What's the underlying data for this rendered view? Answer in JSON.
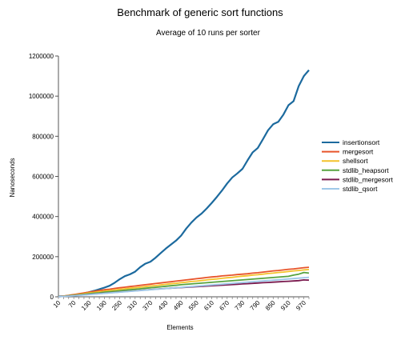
{
  "chart_data": {
    "type": "line",
    "title": "Benchmark of generic sort functions",
    "subtitle": "Average of 10 runs per sorter",
    "xlabel": "Elements",
    "ylabel": "Nanoseconds",
    "ylim": [
      0,
      1200000
    ],
    "yticks": [
      0,
      200000,
      400000,
      600000,
      800000,
      1000000,
      1200000
    ],
    "ytick_labels": [
      "0",
      "200000",
      "400000",
      "600000",
      "800000",
      "1000000",
      "1200000"
    ],
    "xticks": [
      "10",
      "70",
      "130",
      "190",
      "250",
      "310",
      "370",
      "430",
      "490",
      "550",
      "610",
      "670",
      "730",
      "790",
      "850",
      "910",
      "970"
    ],
    "x_step": 20,
    "grid": false,
    "legend_position": "right",
    "x": [
      10,
      30,
      50,
      70,
      90,
      110,
      130,
      150,
      170,
      190,
      210,
      230,
      250,
      270,
      290,
      310,
      330,
      350,
      370,
      390,
      410,
      430,
      450,
      470,
      490,
      510,
      530,
      550,
      570,
      590,
      610,
      630,
      650,
      670,
      690,
      710,
      730,
      750,
      770,
      790,
      810,
      830,
      850,
      870,
      890,
      910,
      930,
      950,
      970,
      990
    ],
    "series": [
      {
        "name": "insertionsort",
        "color": "#1c6a9e",
        "values": [
          2000,
          3000,
          5000,
          8000,
          12000,
          17000,
          23000,
          30000,
          38000,
          46000,
          55000,
          70000,
          88000,
          103000,
          112000,
          125000,
          148000,
          165000,
          175000,
          195000,
          218000,
          240000,
          260000,
          280000,
          305000,
          340000,
          370000,
          395000,
          415000,
          440000,
          468000,
          498000,
          530000,
          565000,
          595000,
          615000,
          638000,
          680000,
          720000,
          742000,
          785000,
          830000,
          860000,
          872000,
          908000,
          955000,
          975000,
          1050000,
          1100000,
          1130000
        ]
      },
      {
        "name": "mergesort",
        "color": "#e8542a",
        "values": [
          1500,
          4000,
          7000,
          11000,
          15000,
          19000,
          23000,
          27000,
          31000,
          35000,
          38000,
          42000,
          45000,
          48000,
          51000,
          54000,
          57000,
          60000,
          63000,
          66000,
          69000,
          72000,
          75000,
          78000,
          81000,
          84000,
          87000,
          90000,
          93000,
          96000,
          99000,
          101000,
          104000,
          106000,
          108000,
          111000,
          113000,
          115000,
          118000,
          120000,
          123000,
          126000,
          129000,
          131000,
          134000,
          137000,
          139000,
          142000,
          145000,
          147000
        ]
      },
      {
        "name": "shellsort",
        "color": "#f4c22b",
        "values": [
          1000,
          3000,
          6000,
          9000,
          12000,
          15000,
          19000,
          22000,
          25000,
          28000,
          31000,
          34000,
          37000,
          40000,
          43000,
          45000,
          48000,
          51000,
          54000,
          56000,
          59000,
          62000,
          65000,
          67000,
          70000,
          73000,
          76000,
          78000,
          81000,
          84000,
          87000,
          89000,
          92000,
          95000,
          97000,
          100000,
          103000,
          105000,
          108000,
          110000,
          113000,
          116000,
          118000,
          121000,
          123000,
          126000,
          129000,
          131000,
          134000,
          136000
        ]
      },
      {
        "name": "stdlib_heapsort",
        "color": "#57a33f",
        "values": [
          1000,
          2500,
          5000,
          7500,
          10000,
          12500,
          15000,
          18000,
          20000,
          23000,
          25000,
          27500,
          30000,
          32500,
          35000,
          37500,
          40000,
          42500,
          45000,
          47500,
          50000,
          52500,
          55000,
          57500,
          60000,
          62000,
          64000,
          66000,
          68000,
          70000,
          72000,
          74000,
          76000,
          78000,
          80000,
          82000,
          84000,
          86000,
          88000,
          90000,
          92000,
          94000,
          96000,
          98000,
          100000,
          102000,
          108000,
          113000,
          121000,
          118000
        ]
      },
      {
        "name": "stdlib_mergesort",
        "color": "#7a1a4e",
        "values": [
          800,
          2000,
          4000,
          6000,
          8000,
          10000,
          12000,
          14000,
          16000,
          18000,
          20000,
          22000,
          24000,
          26000,
          28000,
          30000,
          32000,
          34000,
          36000,
          38000,
          40000,
          41500,
          43000,
          44500,
          46000,
          47500,
          49000,
          50500,
          52000,
          53500,
          55000,
          56500,
          58000,
          59500,
          61000,
          62500,
          64000,
          65500,
          67000,
          68500,
          70000,
          71500,
          73000,
          74500,
          76000,
          77500,
          79000,
          80500,
          84000,
          83000
        ]
      },
      {
        "name": "stdlib_qsort",
        "color": "#9fc8e8",
        "values": [
          800,
          2000,
          3500,
          5000,
          7000,
          9000,
          11000,
          13000,
          15000,
          17000,
          19000,
          21000,
          23000,
          25000,
          27000,
          29000,
          31000,
          33000,
          35000,
          37000,
          39000,
          41000,
          43000,
          45000,
          47000,
          49000,
          51000,
          53000,
          55000,
          57000,
          59000,
          61000,
          63000,
          65000,
          67000,
          69000,
          71000,
          73000,
          75000,
          77000,
          79000,
          81000,
          83000,
          85000,
          87000,
          89000,
          91000,
          93000,
          95000,
          97000
        ]
      }
    ]
  }
}
